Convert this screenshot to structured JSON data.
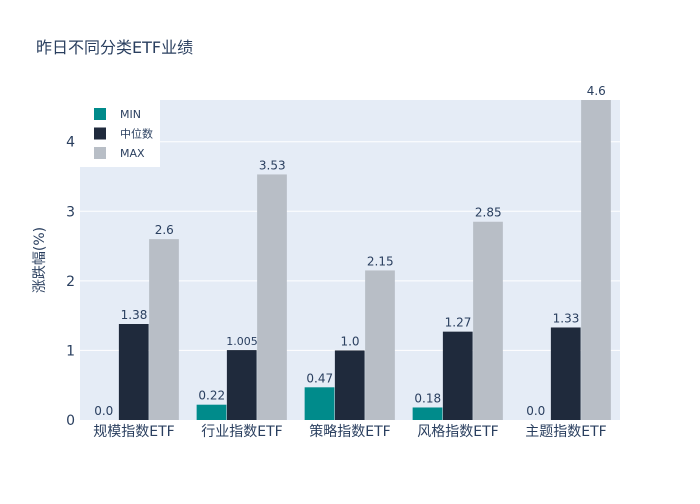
{
  "chart_data": {
    "type": "bar",
    "title": "昨日不同分类ETF业绩",
    "xlabel": "",
    "ylabel": "涨跌幅(%)",
    "categories": [
      "规模指数ETF",
      "行业指数ETF",
      "策略指数ETF",
      "风格指数ETF",
      "主题指数ETF"
    ],
    "series": [
      {
        "name": "MIN",
        "values": [
          0.0,
          0.22,
          0.47,
          0.18,
          0.0
        ],
        "labels": [
          "0.0",
          "0.22",
          "0.47",
          "0.18",
          "0.0"
        ],
        "color": "#008b8b"
      },
      {
        "name": "中位数",
        "values": [
          1.38,
          1.005,
          1.0,
          1.27,
          1.33
        ],
        "labels": [
          "1.38",
          "1.005",
          "1.0",
          "1.27",
          "1.33"
        ],
        "color": "#1f2a3c"
      },
      {
        "name": "MAX",
        "values": [
          2.6,
          3.53,
          2.15,
          2.85,
          4.6
        ],
        "labels": [
          "2.6",
          "3.53",
          "2.15",
          "2.85",
          "4.6"
        ],
        "color": "#b8bec6"
      }
    ],
    "ylim": [
      0,
      4.6
    ],
    "yticks": [
      0,
      1,
      2,
      3,
      4
    ],
    "grid": true,
    "legend": "top-left",
    "plot_bg": "#e5ecf6",
    "text_color": "#2a3f5f"
  }
}
